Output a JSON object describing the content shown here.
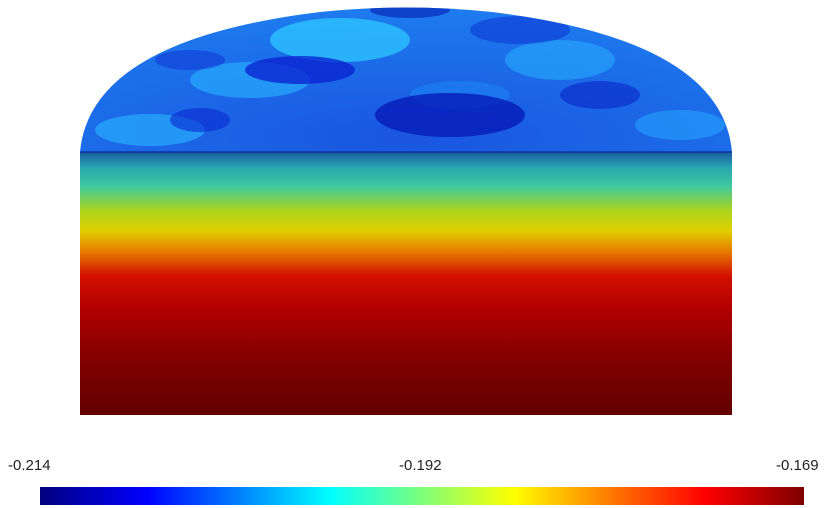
{
  "colorbar": {
    "min_label": "-0.214",
    "mid_label": "-0.192",
    "max_label": "-0.169",
    "colormap": "jet",
    "colors": [
      "#00007f",
      "#0000ff",
      "#0080ff",
      "#00ffff",
      "#7dff7a",
      "#ffff00",
      "#ff8000",
      "#ff0000",
      "#7f0000"
    ]
  },
  "map": {
    "projection": "mollweide-partial",
    "description_colors": {
      "cap_low": "#0010d0",
      "cap_high": "#10c8ff",
      "band_cyan": "#2fd0c0",
      "band_yellow": "#d8e000",
      "band_red": "#cc0000",
      "band_dark": "#600000"
    }
  }
}
